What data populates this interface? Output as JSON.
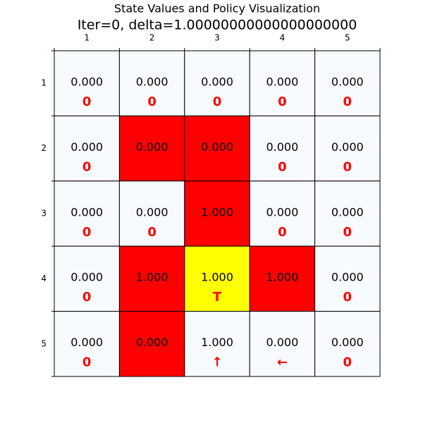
{
  "header": {
    "title": "State Values and Policy Visualization",
    "subtitle": "Iter=0, delta=1.00000000000000000000"
  },
  "columns": [
    "1",
    "2",
    "3",
    "4",
    "5"
  ],
  "rows": [
    "1",
    "2",
    "3",
    "4",
    "5"
  ],
  "grid": [
    [
      {
        "value": "0.000",
        "policy": "0",
        "color": "#f7fbff"
      },
      {
        "value": "0.000",
        "policy": "0",
        "color": "#f7fbff"
      },
      {
        "value": "0.000",
        "policy": "0",
        "color": "#f7fbff"
      },
      {
        "value": "0.000",
        "policy": "0",
        "color": "#f7fbff"
      },
      {
        "value": "0.000",
        "policy": "0",
        "color": "#f7fbff"
      }
    ],
    [
      {
        "value": "0.000",
        "policy": "0",
        "color": "#f7fbff"
      },
      {
        "value": "0.000",
        "color": "#ff0000"
      },
      {
        "value": "0.000",
        "color": "#ff0000"
      },
      {
        "value": "0.000",
        "policy": "0",
        "color": "#f7fbff"
      },
      {
        "value": "0.000",
        "policy": "0",
        "color": "#f7fbff"
      }
    ],
    [
      {
        "value": "0.000",
        "policy": "0",
        "color": "#f7fbff"
      },
      {
        "value": "0.000",
        "policy": "0",
        "color": "#f7fbff"
      },
      {
        "value": "1.000",
        "color": "#ff0000"
      },
      {
        "value": "0.000",
        "policy": "0",
        "color": "#f7fbff"
      },
      {
        "value": "0.000",
        "policy": "0",
        "color": "#f7fbff"
      }
    ],
    [
      {
        "value": "0.000",
        "policy": "0",
        "color": "#f7fbff"
      },
      {
        "value": "1.000",
        "color": "#ff0000"
      },
      {
        "value": "1.000",
        "policy": "T",
        "color": "#ffff00"
      },
      {
        "value": "1.000",
        "color": "#ff0000"
      },
      {
        "value": "0.000",
        "policy": "0",
        "color": "#f7fbff"
      }
    ],
    [
      {
        "value": "0.000",
        "policy": "0",
        "color": "#f7fbff"
      },
      {
        "value": "0.000",
        "color": "#ff0000"
      },
      {
        "value": "1.000",
        "policy": "↑",
        "color": "#f7fbff"
      },
      {
        "value": "0.000",
        "policy": "←",
        "color": "#f7fbff"
      },
      {
        "value": "0.000",
        "policy": "0",
        "color": "#f7fbff"
      }
    ]
  ]
}
